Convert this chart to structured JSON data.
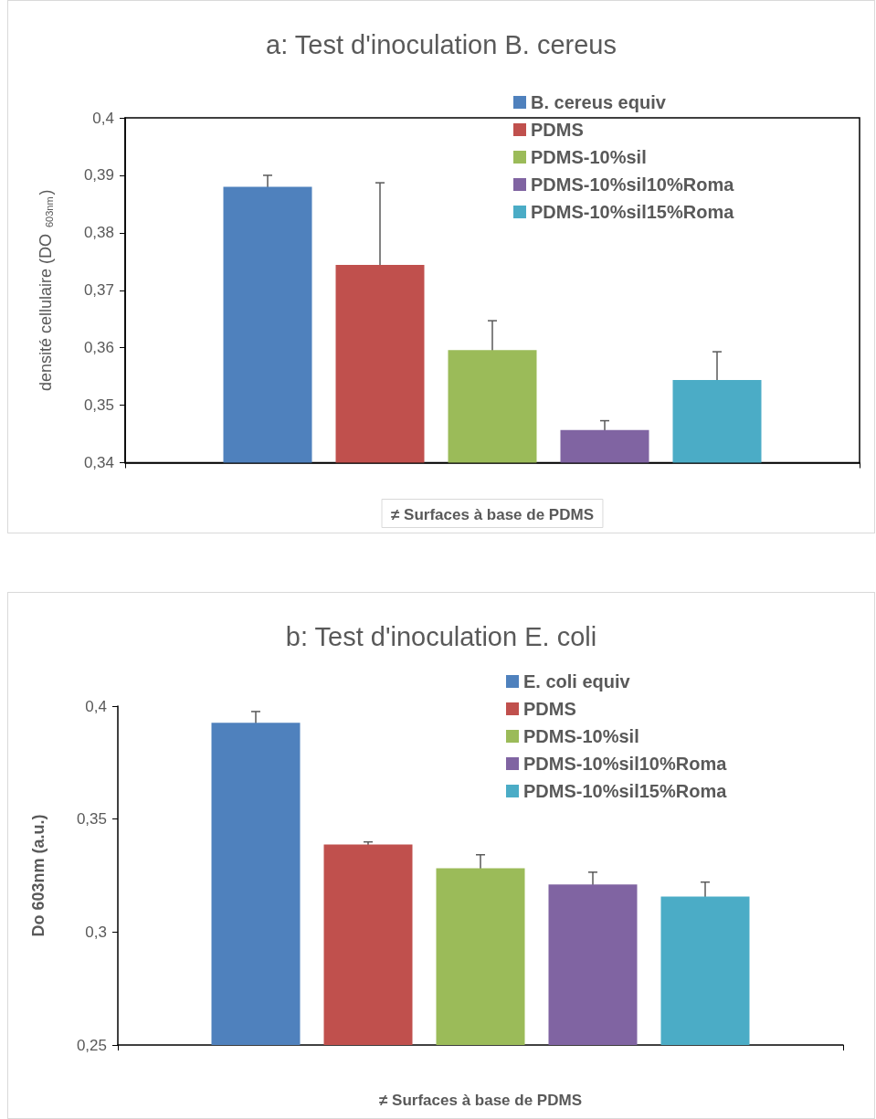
{
  "chart_data": [
    {
      "type": "bar",
      "title": "a: Test d'inoculation B. cereus",
      "xlabel": "≠ Surfaces à base de PDMS",
      "ylabel": "densité cellulaire (DO $_{603nm}$)",
      "categories": [
        null
      ],
      "series": [
        {
          "name": "B. cereus equiv",
          "color": "#4f81bd",
          "values": [
            0.388
          ],
          "errors": [
            0.002
          ]
        },
        {
          "name": "PDMS",
          "color": "#c0504d",
          "values": [
            0.3744
          ],
          "errors": [
            0.0143
          ]
        },
        {
          "name": "PDMS-10%sil",
          "color": "#9bbb59",
          "values": [
            0.3596
          ],
          "errors": [
            0.0051
          ]
        },
        {
          "name": "PDMS-10%sil10%Roma",
          "color": "#8064a2",
          "values": [
            0.3457
          ],
          "errors": [
            0.0016
          ]
        },
        {
          "name": "PDMS-10%sil15%Roma",
          "color": "#4bacc6",
          "values": [
            0.3544
          ],
          "errors": [
            0.0049
          ]
        }
      ],
      "ylim": [
        0.34,
        0.4
      ],
      "yticks": [
        {
          "value": 0.34,
          "label": "0,34"
        },
        {
          "value": 0.35,
          "label": "0,35"
        },
        {
          "value": 0.36,
          "label": "0,36"
        },
        {
          "value": 0.37,
          "label": "0,37"
        },
        {
          "value": 0.38,
          "label": "0,38"
        },
        {
          "value": 0.39,
          "label": "0,39"
        },
        {
          "value": 0.4,
          "label": "0,4"
        }
      ],
      "grid": false,
      "legend": "top right"
    },
    {
      "type": "bar",
      "title": "b: Test d'inoculation E. coli",
      "xlabel": "≠ Surfaces à base de PDMS",
      "ylabel": "Do 603nm (a.u.)",
      "categories": [
        null
      ],
      "series": [
        {
          "name": "E. coli equiv",
          "color": "#4f81bd",
          "values": [
            0.3926
          ],
          "errors": [
            0.005
          ]
        },
        {
          "name": "PDMS",
          "color": "#c0504d",
          "values": [
            0.3387
          ],
          "errors": [
            0.0012
          ]
        },
        {
          "name": "PDMS-10%sil",
          "color": "#9bbb59",
          "values": [
            0.3282
          ],
          "errors": [
            0.006
          ]
        },
        {
          "name": "PDMS-10%sil10%Roma",
          "color": "#8064a2",
          "values": [
            0.3211
          ],
          "errors": [
            0.0054
          ]
        },
        {
          "name": "PDMS-10%sil15%Roma",
          "color": "#4bacc6",
          "values": [
            0.3157
          ],
          "errors": [
            0.0064
          ]
        }
      ],
      "ylim": [
        0.25,
        0.4
      ],
      "yticks": [
        {
          "value": 0.25,
          "label": "0,25"
        },
        {
          "value": 0.3,
          "label": "0,3"
        },
        {
          "value": 0.35,
          "label": "0,35"
        },
        {
          "value": 0.4,
          "label": "0,4"
        }
      ],
      "grid": false,
      "legend": "top right"
    }
  ]
}
